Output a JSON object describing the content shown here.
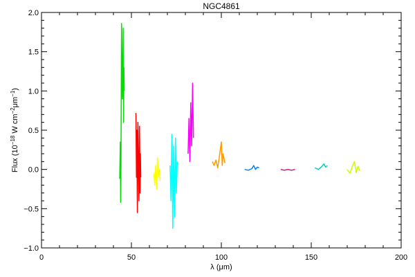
{
  "chart_data": {
    "type": "line",
    "title": "NGC4861",
    "xlabel": "λ (μm)",
    "ylabel_main": "Flux (10",
    "ylabel_exp1": "−18",
    "ylabel_mid": " W cm",
    "ylabel_exp2": "−2",
    "ylabel_mid2": "μm",
    "ylabel_exp3": "−1",
    "ylabel_end": ")",
    "xlim": [
      0,
      200
    ],
    "ylim": [
      -1.0,
      2.0
    ],
    "xticks": [
      0,
      50,
      100,
      150,
      200
    ],
    "xtick_labels": [
      "0",
      "50",
      "100",
      "150",
      "200"
    ],
    "yticks": [
      -1.0,
      -0.5,
      0.0,
      0.5,
      1.0,
      1.5,
      2.0
    ],
    "ytick_labels": [
      "−1.0",
      "−0.5",
      "0.0",
      "0.5",
      "1.0",
      "1.5",
      "2.0"
    ],
    "series": [
      {
        "color": "#00e000",
        "x": [
          43.5,
          43.8,
          44.0,
          44.2,
          44.5,
          44.8,
          45.0,
          45.2,
          45.4,
          45.6,
          45.8,
          46.0
        ],
        "y": [
          -0.12,
          0.35,
          -0.42,
          0.05,
          1.86,
          1.1,
          0.9,
          1.35,
          1.8,
          0.6,
          1.3,
          1.0
        ]
      },
      {
        "color": "#ff0000",
        "x": [
          52.5,
          52.8,
          53.0,
          53.3,
          53.6,
          53.9,
          54.2,
          54.5,
          54.8,
          55.0,
          55.2
        ],
        "y": [
          0.72,
          -0.1,
          0.5,
          -0.55,
          0.6,
          0.1,
          -0.4,
          0.55,
          -0.3,
          0.2,
          -0.1
        ]
      },
      {
        "color": "#ffff00",
        "x": [
          62.5,
          63.0,
          63.5,
          64.0,
          64.5,
          65.0,
          65.5,
          66.0
        ],
        "y": [
          -0.05,
          -0.2,
          0.05,
          -0.25,
          0.15,
          -0.1,
          0.0,
          -0.15
        ]
      },
      {
        "color": "#00ffff",
        "x": [
          71.5,
          72.0,
          72.5,
          73.0,
          73.5,
          74.0,
          74.5,
          75.0,
          75.5
        ],
        "y": [
          0.05,
          -0.4,
          0.45,
          -0.75,
          0.3,
          -0.6,
          0.4,
          -0.3,
          0.1
        ]
      },
      {
        "color": "#ff00ff",
        "x": [
          81.5,
          82.0,
          82.5,
          83.0,
          83.5,
          84.0,
          84.5
        ],
        "y": [
          0.2,
          0.65,
          0.1,
          0.85,
          0.3,
          1.1,
          0.4
        ]
      },
      {
        "color": "#ff9900",
        "x": [
          95.0,
          96.0,
          97.0,
          98.0,
          99.0,
          100.0,
          100.5,
          101.0,
          102.0
        ],
        "y": [
          0.1,
          0.05,
          0.12,
          0.02,
          0.18,
          0.35,
          0.05,
          0.2,
          0.08
        ]
      },
      {
        "color": "#0080ff",
        "x": [
          113.0,
          115.0,
          117.0,
          118.0,
          119.0,
          120.0,
          121.0
        ],
        "y": [
          0.0,
          -0.01,
          0.01,
          0.05,
          0.0,
          0.03,
          0.02
        ]
      },
      {
        "color": "#e00080",
        "x": [
          133.0,
          135.0,
          137.0,
          139.0,
          141.0
        ],
        "y": [
          0.0,
          -0.01,
          0.0,
          -0.01,
          0.0
        ]
      },
      {
        "color": "#00d0c0",
        "x": [
          152.0,
          154.0,
          156.0,
          157.0,
          158.0,
          159.0
        ],
        "y": [
          0.02,
          0.0,
          0.04,
          0.07,
          0.03,
          0.05
        ]
      },
      {
        "color": "#c8ff00",
        "x": [
          170.0,
          171.5,
          173.0,
          174.0,
          175.0,
          176.0,
          177.0
        ],
        "y": [
          0.0,
          -0.05,
          0.05,
          0.1,
          -0.04,
          0.04,
          -0.02
        ]
      }
    ]
  }
}
